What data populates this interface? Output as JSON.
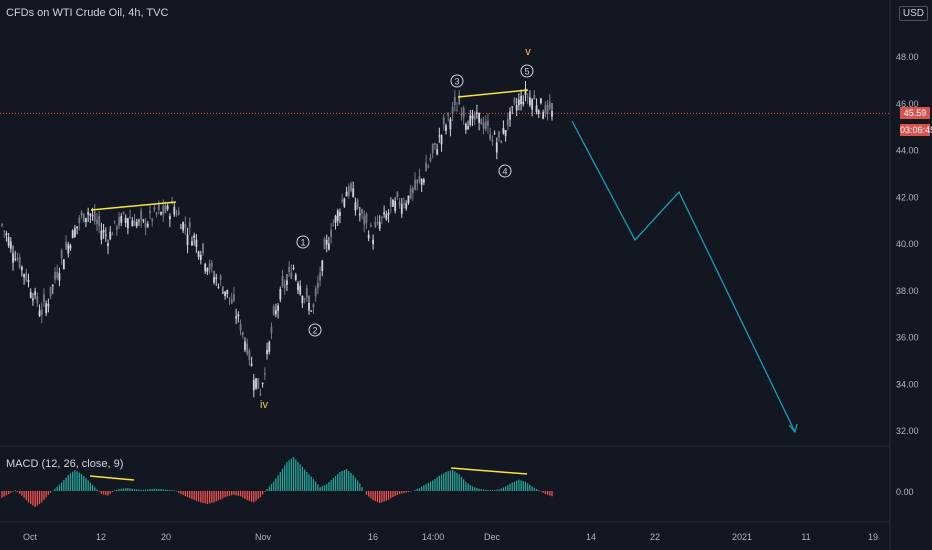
{
  "header": {
    "title": "CFDs on WTI Crude Oil, 4h, TVC",
    "currency": "USD",
    "last_price": "45.59",
    "countdown": "03:06:45"
  },
  "macd": {
    "label": "MACD (12, 26, close, 9)"
  },
  "colors": {
    "up": "#26a69a",
    "down": "#ef5350",
    "projection": "#1e9bb5",
    "trendline": "#f5e63b",
    "wave": "#f2c94c",
    "last_price": "#d9534f"
  },
  "chart_data": {
    "type": "candlestick",
    "ylim": [
      31.5,
      50
    ],
    "y_ticks": [
      "32.00",
      "34.00",
      "36.00",
      "38.00",
      "40.00",
      "42.00",
      "44.00",
      "46.00",
      "48.00"
    ],
    "x_ticks": [
      "Oct",
      "12",
      "20",
      "Nov",
      "16",
      "14:00",
      "Dec",
      "14",
      "22",
      "2021",
      "11",
      "19"
    ],
    "macd_ticks": [
      "0.00"
    ],
    "price_path": [
      40.8,
      40.2,
      39.6,
      39.0,
      38.4,
      37.7,
      37.1,
      37.6,
      38.5,
      39.3,
      40.0,
      40.6,
      41.1,
      41.4,
      41.0,
      40.6,
      40.3,
      40.7,
      41.0,
      41.2,
      41.0,
      40.8,
      41.0,
      41.2,
      41.3,
      41.4,
      41.6,
      41.0,
      40.6,
      40.3,
      39.8,
      39.2,
      38.6,
      38.3,
      37.9,
      37.3,
      36.5,
      35.6,
      34.4,
      33.7,
      35.2,
      36.7,
      37.8,
      38.4,
      39.0,
      38.3,
      37.5,
      37.2,
      38.5,
      40.0,
      40.8,
      41.6,
      42.3,
      42.1,
      41.3,
      40.8,
      40.4,
      40.9,
      41.2,
      41.6,
      41.8,
      41.9,
      42.2,
      42.6,
      43.1,
      43.8,
      44.5,
      45.1,
      45.6,
      46.0,
      45.4,
      45.2,
      45.4,
      45.0,
      44.6,
      44.3,
      45.0,
      45.6,
      46.1,
      46.4,
      46.2,
      46.0,
      45.8,
      45.6
    ],
    "macd_hist": [
      -0.18,
      -0.08,
      0.02,
      -0.12,
      -0.3,
      -0.42,
      -0.3,
      -0.1,
      0.06,
      0.22,
      0.42,
      0.55,
      0.45,
      0.28,
      0.1,
      -0.08,
      -0.12,
      0.02,
      0.06,
      0.08,
      0.05,
      0.03,
      0.04,
      0.06,
      0.05,
      0.03,
      0.02,
      -0.08,
      -0.16,
      -0.24,
      -0.3,
      -0.34,
      -0.3,
      -0.22,
      -0.14,
      -0.1,
      -0.14,
      -0.24,
      -0.3,
      -0.16,
      0.05,
      0.25,
      0.5,
      0.76,
      0.9,
      0.7,
      0.5,
      0.32,
      0.1,
      0.18,
      0.34,
      0.5,
      0.58,
      0.42,
      0.2,
      -0.1,
      -0.24,
      -0.32,
      -0.26,
      -0.16,
      -0.08,
      -0.04,
      0.0,
      0.08,
      0.18,
      0.28,
      0.4,
      0.5,
      0.56,
      0.44,
      0.24,
      0.12,
      0.06,
      0.03,
      0.02,
      0.04,
      0.12,
      0.22,
      0.3,
      0.24,
      0.12,
      0.02,
      -0.08,
      -0.14
    ],
    "annotations": {
      "wave_numbers": [
        "1",
        "2",
        "3",
        "4",
        "5"
      ],
      "wave_letters": [
        "iv",
        "v"
      ]
    },
    "projection": [
      [
        45.2,
        0
      ],
      [
        40.2,
        1
      ],
      [
        42.2,
        2
      ],
      [
        32.0,
        3
      ]
    ]
  }
}
